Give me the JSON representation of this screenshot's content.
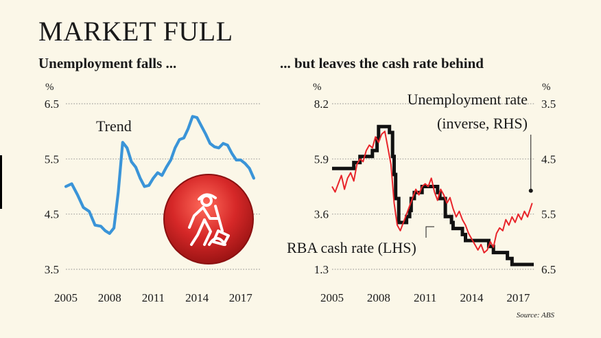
{
  "headline": "MARKET FULL",
  "source": "Source: ABS",
  "colors": {
    "background": "#fbf7e8",
    "trend_line": "#3a94d8",
    "unemployment_line": "#e8242a",
    "cash_rate_line": "#111111",
    "icon_red": "#d62828"
  },
  "icon": "road-worker-shovel-icon",
  "chart_data": [
    {
      "type": "line",
      "title": "Unemployment falls ...",
      "ylabel": "%",
      "xlabel": "",
      "ylim": [
        3.5,
        6.5
      ],
      "yticks": [
        "6.5",
        "5.5",
        "4.5",
        "3.5"
      ],
      "ytick_values": [
        6.5,
        5.5,
        4.5,
        3.5
      ],
      "xlim": [
        2005.0,
        2018.0
      ],
      "xticks": [
        "2005",
        "2008",
        "2011",
        "2014",
        "2017"
      ],
      "xtick_values": [
        2005,
        2008,
        2011,
        2014,
        2017
      ],
      "grid": true,
      "annotations": [
        "Trend"
      ],
      "series": [
        {
          "name": "Trend",
          "x": [
            2005.0,
            2005.4,
            2005.8,
            2006.2,
            2006.6,
            2007.0,
            2007.4,
            2007.7,
            2008.0,
            2008.3,
            2008.6,
            2008.9,
            2009.2,
            2009.5,
            2009.8,
            2010.1,
            2010.4,
            2010.7,
            2011.0,
            2011.3,
            2011.6,
            2011.9,
            2012.2,
            2012.5,
            2012.8,
            2013.1,
            2013.4,
            2013.7,
            2014.0,
            2014.3,
            2014.6,
            2014.9,
            2015.2,
            2015.5,
            2015.8,
            2016.1,
            2016.4,
            2016.7,
            2017.0,
            2017.3,
            2017.6,
            2017.9
          ],
          "y": [
            5.0,
            5.05,
            4.85,
            4.62,
            4.55,
            4.3,
            4.28,
            4.2,
            4.15,
            4.25,
            4.9,
            5.8,
            5.7,
            5.45,
            5.35,
            5.15,
            5.0,
            5.02,
            5.15,
            5.25,
            5.2,
            5.35,
            5.48,
            5.7,
            5.85,
            5.88,
            6.05,
            6.27,
            6.25,
            6.1,
            5.95,
            5.78,
            5.72,
            5.7,
            5.78,
            5.75,
            5.6,
            5.48,
            5.48,
            5.42,
            5.33,
            5.15
          ]
        }
      ]
    },
    {
      "type": "line",
      "title": "... but leaves the cash rate behind",
      "ylabel_left": "%",
      "ylabel_right": "%",
      "ylim_left": [
        1.3,
        8.2
      ],
      "yticks_left": [
        "8.2",
        "5.9",
        "3.6",
        "1.3"
      ],
      "ytick_values_left": [
        8.2,
        5.9,
        3.6,
        1.3
      ],
      "ylim_right": [
        3.5,
        6.5
      ],
      "yaxis_right_inverted": true,
      "yticks_right": [
        "3.5",
        "4.5",
        "5.5",
        "6.5"
      ],
      "ytick_values_right": [
        3.5,
        4.5,
        5.5,
        6.5
      ],
      "xlim": [
        2005.0,
        2018.0
      ],
      "xticks": [
        "2005",
        "2008",
        "2011",
        "2014",
        "2017"
      ],
      "xtick_values": [
        2005,
        2008,
        2011,
        2014,
        2017
      ],
      "grid": true,
      "annotations": [
        "Unemployment rate",
        "(inverse, RHS)",
        "RBA cash rate (LHS)"
      ],
      "series": [
        {
          "name": "RBA cash rate (LHS)",
          "axis": "left",
          "x": [
            2005.0,
            2006.4,
            2006.4,
            2006.8,
            2006.8,
            2007.6,
            2007.6,
            2007.9,
            2007.9,
            2008.0,
            2008.0,
            2008.7,
            2008.7,
            2008.9,
            2008.9,
            2009.0,
            2009.0,
            2009.1,
            2009.1,
            2009.3,
            2009.3,
            2009.8,
            2009.8,
            2010.0,
            2010.0,
            2010.1,
            2010.1,
            2010.3,
            2010.3,
            2010.8,
            2010.8,
            2011.8,
            2011.8,
            2011.95,
            2011.95,
            2012.3,
            2012.3,
            2012.7,
            2012.7,
            2012.8,
            2012.8,
            2013.4,
            2013.4,
            2013.6,
            2013.6,
            2015.1,
            2015.1,
            2015.4,
            2015.4,
            2016.3,
            2016.3,
            2016.6,
            2016.6,
            2018.0
          ],
          "y": [
            5.5,
            5.5,
            5.75,
            5.75,
            6.0,
            6.0,
            6.25,
            6.25,
            6.75,
            6.75,
            7.25,
            7.25,
            7.0,
            7.0,
            6.0,
            6.0,
            5.25,
            5.25,
            4.25,
            4.25,
            3.25,
            3.25,
            3.5,
            3.5,
            3.75,
            3.75,
            4.25,
            4.25,
            4.5,
            4.5,
            4.75,
            4.75,
            4.5,
            4.5,
            4.25,
            4.25,
            3.5,
            3.5,
            3.25,
            3.25,
            3.0,
            3.0,
            2.75,
            2.75,
            2.5,
            2.5,
            2.25,
            2.25,
            2.0,
            2.0,
            1.75,
            1.75,
            1.5,
            1.5
          ]
        },
        {
          "name": "Unemployment rate (inverse, RHS)",
          "axis": "right",
          "x": [
            2005.0,
            2005.2,
            2005.4,
            2005.6,
            2005.8,
            2006.0,
            2006.2,
            2006.4,
            2006.6,
            2006.8,
            2007.0,
            2007.2,
            2007.4,
            2007.6,
            2007.8,
            2008.0,
            2008.2,
            2008.4,
            2008.6,
            2008.8,
            2009.0,
            2009.2,
            2009.4,
            2009.6,
            2009.8,
            2010.0,
            2010.2,
            2010.4,
            2010.6,
            2010.8,
            2011.0,
            2011.2,
            2011.4,
            2011.6,
            2011.8,
            2012.0,
            2012.2,
            2012.4,
            2012.6,
            2012.8,
            2013.0,
            2013.2,
            2013.4,
            2013.6,
            2013.8,
            2014.0,
            2014.2,
            2014.4,
            2014.6,
            2014.8,
            2015.0,
            2015.2,
            2015.4,
            2015.6,
            2015.8,
            2016.0,
            2016.2,
            2016.4,
            2016.6,
            2016.8,
            2017.0,
            2017.2,
            2017.4,
            2017.6,
            2017.9
          ],
          "y": [
            5.0,
            5.1,
            4.95,
            4.8,
            5.05,
            4.85,
            4.75,
            4.9,
            4.6,
            4.5,
            4.55,
            4.35,
            4.25,
            4.3,
            4.1,
            4.2,
            4.05,
            4.0,
            4.3,
            4.6,
            5.3,
            5.7,
            5.8,
            5.65,
            5.5,
            5.35,
            5.2,
            5.05,
            5.15,
            5.0,
            4.95,
            5.0,
            4.85,
            5.1,
            5.25,
            5.05,
            5.15,
            5.3,
            5.2,
            5.4,
            5.55,
            5.45,
            5.6,
            5.7,
            5.85,
            5.95,
            6.05,
            6.15,
            6.05,
            6.2,
            6.15,
            6.0,
            6.1,
            5.85,
            5.75,
            5.8,
            5.6,
            5.7,
            5.55,
            5.65,
            5.5,
            5.6,
            5.45,
            5.55,
            5.3
          ]
        }
      ]
    }
  ]
}
